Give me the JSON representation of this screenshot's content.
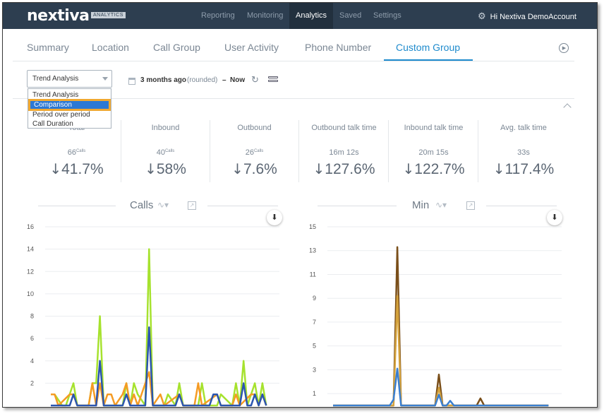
{
  "header": {
    "logo": "nextiva",
    "badge": "ANALYTICS",
    "nav": [
      {
        "label": "Reporting",
        "active": false
      },
      {
        "label": "Monitoring",
        "active": false
      },
      {
        "label": "Analytics",
        "active": true
      },
      {
        "label": "Saved",
        "active": false
      },
      {
        "label": "Settings",
        "active": false
      }
    ],
    "greeting": "Hi Nextiva DemoAccount"
  },
  "tabs": [
    {
      "label": "Summary",
      "active": false
    },
    {
      "label": "Location",
      "active": false
    },
    {
      "label": "Call Group",
      "active": false
    },
    {
      "label": "User Activity",
      "active": false
    },
    {
      "label": "Phone Number",
      "active": false
    },
    {
      "label": "Custom Group",
      "active": true
    }
  ],
  "controls": {
    "select_value": "Trend Analysis",
    "options": [
      "Trend Analysis",
      "Comparison",
      "Period over period",
      "Call Duration"
    ],
    "highlighted_option": "Comparison",
    "range_from": "3 months ago",
    "range_note": "(rounded)",
    "range_dash": "–",
    "range_to": "Now"
  },
  "stats": [
    {
      "label": "Total",
      "value": "66",
      "unit": "Calls",
      "pct": "41.7%"
    },
    {
      "label": "Inbound",
      "value": "40",
      "unit": "Calls",
      "pct": "58%"
    },
    {
      "label": "Outbound",
      "value": "26",
      "unit": "Calls",
      "pct": "7.6%"
    },
    {
      "label": "Outbound talk time",
      "value": "16m 12s",
      "unit": "",
      "pct": "127.6%"
    },
    {
      "label": "Inbound talk time",
      "value": "20m 15s",
      "unit": "",
      "pct": "122.7%"
    },
    {
      "label": "Avg. talk time",
      "value": "33s",
      "unit": "",
      "pct": "117.4%"
    }
  ],
  "icons": {
    "arrow_down": "↓",
    "refresh": "↻",
    "download": "⬇",
    "trend": "∿▾",
    "export": "↗",
    "play": "▶",
    "gear": "⚙"
  },
  "colors": {
    "nav_bg": "#2d3e50",
    "accent": "#1f8bcd",
    "series_total": "#a6e22e",
    "series_inbound": "#f59b23",
    "series_outbound": "#2a55b0",
    "series_min_total": "#7a4f1a",
    "series_min_in": "#d4a23c",
    "series_min_out": "#3a7fd0"
  },
  "chart_data": [
    {
      "type": "line",
      "title": "Calls",
      "ylim": [
        0,
        16
      ],
      "yticks": [
        2,
        4,
        6,
        8,
        10,
        12,
        14,
        16
      ],
      "grid": true,
      "x_count": 60,
      "series": [
        {
          "color": "#a6e22e",
          "points": [
            [
              0,
              1
            ],
            [
              1,
              1
            ],
            [
              3,
              0
            ],
            [
              4,
              0
            ],
            [
              6,
              2
            ],
            [
              7,
              0
            ],
            [
              10,
              0
            ],
            [
              11,
              2
            ],
            [
              12,
              2
            ],
            [
              13,
              8
            ],
            [
              14,
              0
            ],
            [
              15,
              0
            ],
            [
              19,
              0
            ],
            [
              20,
              2
            ],
            [
              21,
              0
            ],
            [
              22,
              2
            ],
            [
              23,
              1
            ],
            [
              25,
              0
            ],
            [
              26,
              14
            ],
            [
              27,
              0
            ],
            [
              30,
              0
            ],
            [
              31,
              1
            ],
            [
              33,
              0
            ],
            [
              34,
              2
            ],
            [
              35,
              0
            ],
            [
              39,
              0
            ],
            [
              40,
              2
            ],
            [
              41,
              0
            ],
            [
              44,
              0
            ],
            [
              45,
              1
            ],
            [
              48,
              0
            ],
            [
              49,
              2
            ],
            [
              50,
              0
            ],
            [
              51,
              4
            ],
            [
              52,
              0
            ],
            [
              53,
              1
            ],
            [
              54,
              2
            ],
            [
              55,
              0
            ],
            [
              56,
              2
            ],
            [
              57,
              0
            ]
          ]
        },
        {
          "color": "#f59b23",
          "points": [
            [
              0,
              1
            ],
            [
              1,
              1
            ],
            [
              2,
              0
            ],
            [
              5,
              1
            ],
            [
              6,
              1
            ],
            [
              7,
              0
            ],
            [
              10,
              0
            ],
            [
              11,
              2
            ],
            [
              12,
              0
            ],
            [
              13,
              2
            ],
            [
              14,
              0
            ],
            [
              15,
              1
            ],
            [
              16,
              1
            ],
            [
              17,
              0
            ],
            [
              19,
              1
            ],
            [
              20,
              2
            ],
            [
              21,
              0
            ],
            [
              22,
              1
            ],
            [
              23,
              0
            ],
            [
              26,
              3
            ],
            [
              27,
              0
            ],
            [
              29,
              1
            ],
            [
              30,
              0
            ],
            [
              34,
              1
            ],
            [
              35,
              0
            ],
            [
              38,
              0
            ],
            [
              39,
              2
            ],
            [
              40,
              0
            ],
            [
              44,
              1
            ],
            [
              45,
              0
            ],
            [
              48,
              0
            ],
            [
              49,
              1
            ],
            [
              50,
              0
            ],
            [
              53,
              1
            ],
            [
              54,
              1
            ],
            [
              55,
              0
            ],
            [
              56,
              1
            ],
            [
              57,
              0
            ]
          ]
        },
        {
          "color": "#2a55b0",
          "points": [
            [
              0,
              0
            ],
            [
              5,
              0
            ],
            [
              6,
              1
            ],
            [
              7,
              0
            ],
            [
              12,
              0
            ],
            [
              13,
              4
            ],
            [
              14,
              0
            ],
            [
              19,
              0
            ],
            [
              20,
              1
            ],
            [
              21,
              0
            ],
            [
              25,
              0
            ],
            [
              26,
              7
            ],
            [
              27,
              0
            ],
            [
              33,
              0
            ],
            [
              34,
              1
            ],
            [
              35,
              0
            ],
            [
              42,
              0
            ],
            [
              43,
              1
            ],
            [
              44,
              1
            ],
            [
              45,
              0
            ],
            [
              50,
              0
            ],
            [
              51,
              2
            ],
            [
              52,
              0
            ],
            [
              53,
              0
            ],
            [
              54,
              1
            ],
            [
              55,
              0
            ],
            [
              56,
              1
            ],
            [
              57,
              0
            ]
          ]
        }
      ]
    },
    {
      "type": "line",
      "title": "Min",
      "ylim": [
        0,
        15
      ],
      "yticks": [
        1,
        3,
        5,
        7,
        9,
        11,
        13,
        15
      ],
      "grid": true,
      "x_count": 60,
      "series": [
        {
          "color": "#7a4f1a",
          "points": [
            [
              0,
              0
            ],
            [
              16,
              0
            ],
            [
              17,
              13.3
            ],
            [
              18,
              0
            ],
            [
              27,
              0
            ],
            [
              28,
              2.6
            ],
            [
              29,
              0
            ],
            [
              38,
              0
            ],
            [
              39,
              0.6
            ],
            [
              40,
              0
            ],
            [
              57,
              0
            ]
          ]
        },
        {
          "color": "#d4a23c",
          "points": [
            [
              0,
              0
            ],
            [
              16,
              0
            ],
            [
              17,
              9.2
            ],
            [
              18,
              0
            ],
            [
              27,
              0
            ],
            [
              28,
              1.5
            ],
            [
              29,
              0
            ],
            [
              57,
              0
            ]
          ]
        },
        {
          "color": "#3a7fd0",
          "points": [
            [
              0,
              0
            ],
            [
              15,
              0
            ],
            [
              16,
              0.5
            ],
            [
              17,
              3.1
            ],
            [
              18,
              0
            ],
            [
              27,
              0
            ],
            [
              28,
              0.9
            ],
            [
              29,
              0
            ],
            [
              30,
              0
            ],
            [
              31,
              0.4
            ],
            [
              32,
              0
            ],
            [
              57,
              0
            ]
          ]
        }
      ]
    }
  ]
}
